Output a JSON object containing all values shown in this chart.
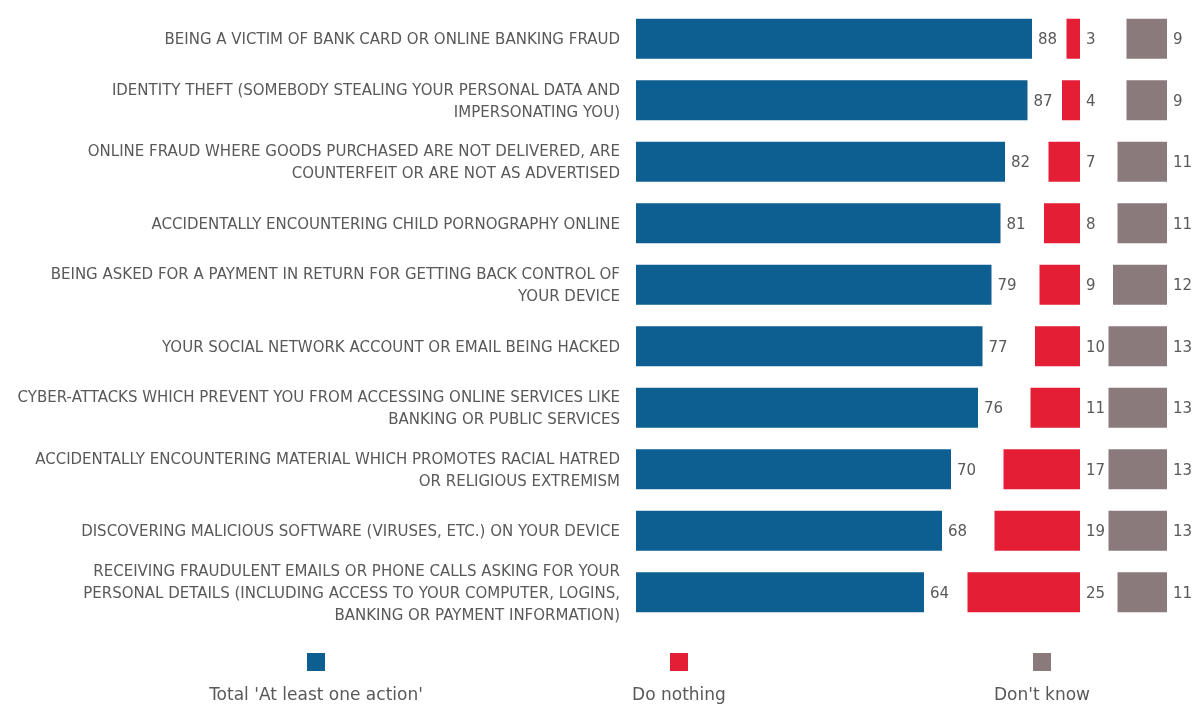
{
  "chart_data": [
    {
      "type": "bar",
      "orientation": "horizontal",
      "data_labels": true,
      "legend": "bottom",
      "tick_labels": "y",
      "categories": [
        "BEING A VICTIM OF BANK CARD OR ONLINE BANKING FRAUD",
        "IDENTITY THEFT (SOMEBODY STEALING YOUR PERSONAL DATA AND IMPERSONATING YOU)",
        "ONLINE FRAUD WHERE GOODS PURCHASED ARE NOT DELIVERED, ARE COUNTERFEIT OR ARE NOT AS ADVERTISED",
        "ACCIDENTALLY ENCOUNTERING CHILD PORNOGRAPHY ONLINE",
        "BEING ASKED FOR A PAYMENT IN RETURN FOR GETTING BACK CONTROL OF YOUR DEVICE",
        "YOUR SOCIAL NETWORK ACCOUNT OR EMAIL BEING HACKED",
        "CYBER-ATTACKS WHICH PREVENT YOU FROM ACCESSING ONLINE SERVICES LIKE BANKING OR PUBLIC SERVICES",
        "ACCIDENTALLY ENCOUNTERING MATERIAL WHICH PROMOTES RACIAL HATRED OR RELIGIOUS EXTREMISM",
        "DISCOVERING MALICIOUS SOFTWARE (VIRUSES, ETC.) ON YOUR DEVICE",
        "RECEIVING FRAUDULENT EMAILS OR PHONE CALLS ASKING FOR YOUR PERSONAL DETAILS (INCLUDING ACCESS TO YOUR COMPUTER, LOGINS, BANKING OR PAYMENT INFORMATION)"
      ],
      "series": [
        {
          "name": "Total 'At least one action'",
          "color": "#0e5f91",
          "values": [
            88,
            87,
            82,
            81,
            79,
            77,
            76,
            70,
            68,
            64
          ]
        }
      ]
    },
    {
      "type": "bar",
      "orientation": "horizontal",
      "data_labels": true,
      "legend": "bottom",
      "tick_labels": false,
      "categories": [
        null,
        null,
        null,
        null,
        null,
        null,
        null,
        null,
        null,
        null
      ],
      "series": [
        {
          "name": "Do nothing",
          "color": "#e41f35",
          "values": [
            3,
            4,
            7,
            8,
            9,
            10,
            11,
            17,
            19,
            25
          ]
        }
      ]
    },
    {
      "type": "bar",
      "orientation": "horizontal",
      "data_labels": true,
      "legend": "bottom",
      "tick_labels": false,
      "categories": [
        null,
        null,
        null,
        null,
        null,
        null,
        null,
        null,
        null,
        null
      ],
      "series": [
        {
          "name": "Don't know",
          "color": "#8a7a7c",
          "values": [
            9,
            9,
            11,
            11,
            12,
            13,
            13,
            13,
            13,
            11
          ]
        }
      ]
    }
  ]
}
